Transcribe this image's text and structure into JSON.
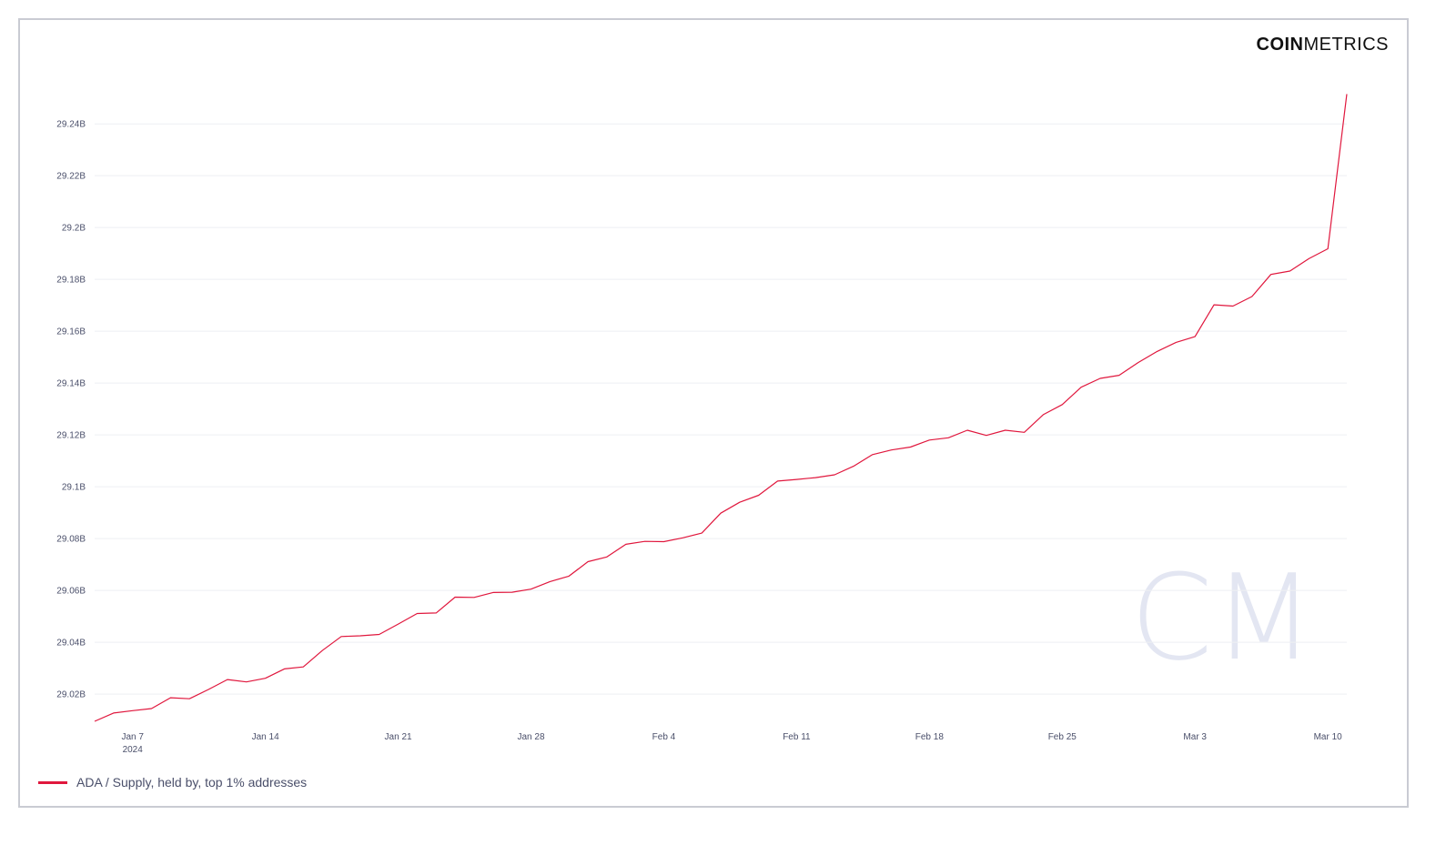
{
  "brand": {
    "coin": "COIN",
    "metrics": "METRICS"
  },
  "watermark": {
    "text": "CM",
    "color": "#e3e6f2"
  },
  "legend": {
    "label": "ADA / Supply, held by, top 1% addresses",
    "color": "#e0173d"
  },
  "chart_data": {
    "type": "line",
    "title": "",
    "xlabel": "",
    "ylabel": "",
    "grid": "horizontal",
    "legend_position": "bottom-left",
    "ylim": [
      29.0095,
      29.252
    ],
    "y_ticks": [
      {
        "value": 29.02,
        "label": "29.02B"
      },
      {
        "value": 29.04,
        "label": "29.04B"
      },
      {
        "value": 29.06,
        "label": "29.06B"
      },
      {
        "value": 29.08,
        "label": "29.08B"
      },
      {
        "value": 29.1,
        "label": "29.1B"
      },
      {
        "value": 29.12,
        "label": "29.12B"
      },
      {
        "value": 29.14,
        "label": "29.14B"
      },
      {
        "value": 29.16,
        "label": "29.16B"
      },
      {
        "value": 29.18,
        "label": "29.18B"
      },
      {
        "value": 29.2,
        "label": "29.2B"
      },
      {
        "value": 29.22,
        "label": "29.22B"
      },
      {
        "value": 29.24,
        "label": "29.24B"
      }
    ],
    "x_start": "2024-01-05",
    "x_ticks": [
      {
        "date": "2024-01-07",
        "label": "Jan 7",
        "sublabel": "2024"
      },
      {
        "date": "2024-01-14",
        "label": "Jan 14"
      },
      {
        "date": "2024-01-21",
        "label": "Jan 21"
      },
      {
        "date": "2024-01-28",
        "label": "Jan 28"
      },
      {
        "date": "2024-02-04",
        "label": "Feb 4"
      },
      {
        "date": "2024-02-11",
        "label": "Feb 11"
      },
      {
        "date": "2024-02-18",
        "label": "Feb 18"
      },
      {
        "date": "2024-02-25",
        "label": "Feb 25"
      },
      {
        "date": "2024-03-03",
        "label": "Mar 3"
      },
      {
        "date": "2024-03-10",
        "label": "Mar 10"
      }
    ],
    "series": [
      {
        "name": "ADA / Supply, held by, top 1% addresses",
        "color": "#e0173d",
        "x": [
          "2024-01-05",
          "2024-01-06",
          "2024-01-07",
          "2024-01-08",
          "2024-01-09",
          "2024-01-10",
          "2024-01-11",
          "2024-01-12",
          "2024-01-13",
          "2024-01-14",
          "2024-01-15",
          "2024-01-16",
          "2024-01-17",
          "2024-01-18",
          "2024-01-19",
          "2024-01-20",
          "2024-01-21",
          "2024-01-22",
          "2024-01-23",
          "2024-01-24",
          "2024-01-25",
          "2024-01-26",
          "2024-01-27",
          "2024-01-28",
          "2024-01-29",
          "2024-01-30",
          "2024-01-31",
          "2024-02-01",
          "2024-02-02",
          "2024-02-03",
          "2024-02-04",
          "2024-02-05",
          "2024-02-06",
          "2024-02-07",
          "2024-02-08",
          "2024-02-09",
          "2024-02-10",
          "2024-02-11",
          "2024-02-12",
          "2024-02-13",
          "2024-02-14",
          "2024-02-15",
          "2024-02-16",
          "2024-02-17",
          "2024-02-18",
          "2024-02-19",
          "2024-02-20",
          "2024-02-21",
          "2024-02-22",
          "2024-02-23",
          "2024-02-24",
          "2024-02-25",
          "2024-02-26",
          "2024-02-27",
          "2024-02-28",
          "2024-02-29",
          "2024-03-01",
          "2024-03-02",
          "2024-03-03",
          "2024-03-04",
          "2024-03-05",
          "2024-03-06",
          "2024-03-07",
          "2024-03-08",
          "2024-03-09",
          "2024-03-10",
          "2024-03-11"
        ],
        "values": [
          29.0095,
          29.0127,
          29.0136,
          29.0144,
          29.0186,
          29.0182,
          29.0218,
          29.0256,
          29.0247,
          29.0261,
          29.0297,
          29.0305,
          29.0368,
          29.0422,
          29.0425,
          29.043,
          29.047,
          29.0511,
          29.0513,
          29.0574,
          29.0573,
          29.0592,
          29.0593,
          29.0605,
          29.0634,
          29.0655,
          29.0711,
          29.0729,
          29.0778,
          29.0789,
          29.0788,
          29.0803,
          29.0821,
          29.0898,
          29.094,
          29.0967,
          29.1022,
          29.1028,
          29.1035,
          29.1046,
          29.1079,
          29.1124,
          29.1142,
          29.1153,
          29.118,
          29.1189,
          29.1218,
          29.1198,
          29.1218,
          29.121,
          29.1278,
          29.1317,
          29.1384,
          29.1418,
          29.143,
          29.1479,
          29.1522,
          29.1557,
          29.1579,
          29.1702,
          29.1697,
          29.1734,
          29.1819,
          29.1832,
          29.188,
          29.1918,
          29.2515
        ]
      }
    ]
  }
}
